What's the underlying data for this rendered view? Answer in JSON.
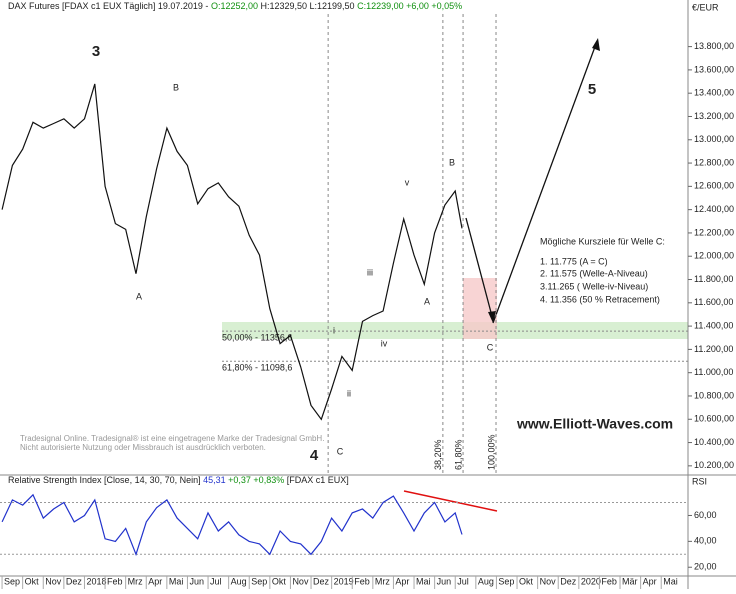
{
  "chart_data": [
    {
      "type": "line",
      "title_parts": [
        {
          "text": "DAX Futures [FDAX c1 EUX  Täglich] 19.07.2019 - ",
          "color": "#222222"
        },
        {
          "text": "O:12252,00",
          "color": "#109010"
        },
        {
          "text": " H:12329,50 L:12199,50 ",
          "color": "#222222"
        },
        {
          "text": "C:12239,00 +6,00 +0,05%",
          "color": "#109010"
        }
      ],
      "y_axis_label": "€/EUR",
      "color": "#111111",
      "x": [
        0,
        0.5,
        1,
        1.5,
        2,
        2.5,
        3,
        3.5,
        4,
        4.5,
        5,
        5.5,
        6,
        6.5,
        7,
        7.5,
        8,
        8.5,
        9,
        9.5,
        10,
        10.5,
        11,
        11.5,
        12,
        12.5,
        13,
        13.5,
        14,
        14.5,
        15,
        15.5,
        16,
        16.5,
        17,
        17.5,
        18,
        18.5,
        19,
        19.5,
        20,
        20.5,
        21,
        21.5,
        22,
        22.33
      ],
      "values": [
        12400,
        12780,
        12920,
        13150,
        13100,
        13140,
        13180,
        13100,
        13180,
        13480,
        12600,
        12280,
        12230,
        11850,
        12340,
        12750,
        13100,
        12900,
        12780,
        12450,
        12580,
        12630,
        12510,
        12430,
        12180,
        12010,
        11550,
        11250,
        11320,
        11050,
        10720,
        10600,
        10860,
        11140,
        11020,
        11440,
        11490,
        11530,
        11940,
        12320,
        12010,
        11760,
        12200,
        12440,
        12560,
        12239
      ],
      "xlim": [
        -0.1,
        33.3
      ],
      "ylim": [
        10130,
        14080
      ],
      "yticks": [
        {
          "value": 10200,
          "label": "10.200,00"
        },
        {
          "value": 10400,
          "label": "10.400,00"
        },
        {
          "value": 10600,
          "label": "10.600,00"
        },
        {
          "value": 10800,
          "label": "10.800,00"
        },
        {
          "value": 11000,
          "label": "11.000,00"
        },
        {
          "value": 11200,
          "label": "11.200,00"
        },
        {
          "value": 11400,
          "label": "11.400,00"
        },
        {
          "value": 11600,
          "label": "11.600,00"
        },
        {
          "value": 11800,
          "label": "11.800,00"
        },
        {
          "value": 12000,
          "label": "12.000,00"
        },
        {
          "value": 12200,
          "label": "12.200,00"
        },
        {
          "value": 12400,
          "label": "12.400,00"
        },
        {
          "value": 12600,
          "label": "12.600,00"
        },
        {
          "value": 12800,
          "label": "12.800,00"
        },
        {
          "value": 13000,
          "label": "13.000,00"
        },
        {
          "value": 13200,
          "label": "13.200,00"
        },
        {
          "value": 13400,
          "label": "13.400,00"
        },
        {
          "value": 13600,
          "label": "13.600,00"
        },
        {
          "value": 13800,
          "label": "13.800,00"
        }
      ],
      "fib_levels": [
        {
          "label": "50,00% - 11356,6",
          "value": 11356.6
        },
        {
          "label": "61,80% - 11098,6",
          "value": 11098.6
        }
      ],
      "time_lines": [
        {
          "x": 15.83
        },
        {
          "label": "38,20%",
          "x": 21.4
        },
        {
          "label": "61,80%",
          "x": 22.38
        },
        {
          "label": "100,00%",
          "x": 23.98
        }
      ],
      "wave_labels": [
        "3",
        "B",
        "A",
        "4",
        "C",
        "i",
        "ii",
        "iii",
        "iv",
        "v",
        "B",
        "A",
        "C",
        "5"
      ],
      "targets_title": "Mögliche Kursziele für Welle C:",
      "targets": [
        "1.  11.775 (A = C)",
        "2.  11.575 (Welle-A-Niveau)",
        "3.11.265 ( Welle-iv-Niveau)",
        "4.  11.356 (50 % Retracement)"
      ],
      "website": "www.Elliott-Waves.com",
      "notice": [
        "Tradesignal Online. Tradesignal® ist eine eingetragene Marke der Tradesignal GmbH.",
        "Nicht autorisierte Nutzung oder Missbrauch ist ausdrücklich verboten."
      ]
    },
    {
      "type": "line",
      "title_parts": [
        {
          "text": "Relative Strength Index [Close, 14, 30, 70, Nein] ",
          "color": "#222222"
        },
        {
          "text": "45,31",
          "color": "#2233cc"
        },
        {
          "text": " +0,37 +0,83%",
          "color": "#109010"
        },
        {
          "text": " [FDAX c1 EUX]",
          "color": "#222222"
        }
      ],
      "y_axis_label": "RSI",
      "color": "#2233cc",
      "x": [
        0,
        0.5,
        1,
        1.5,
        2,
        2.5,
        3,
        3.5,
        4,
        4.5,
        5,
        5.5,
        6,
        6.5,
        7,
        7.5,
        8,
        8.5,
        9,
        9.5,
        10,
        10.5,
        11,
        11.5,
        12,
        12.5,
        13,
        13.5,
        14,
        14.5,
        15,
        15.5,
        16,
        16.5,
        17,
        17.5,
        18,
        18.5,
        19,
        19.5,
        20,
        20.5,
        21,
        21.5,
        22,
        22.33
      ],
      "values": [
        55,
        72,
        68,
        76,
        58,
        65,
        70,
        55,
        60,
        72,
        42,
        40,
        50,
        30,
        55,
        66,
        72,
        58,
        50,
        42,
        62,
        48,
        55,
        45,
        40,
        38,
        30,
        48,
        40,
        38,
        30,
        40,
        58,
        48,
        62,
        65,
        58,
        70,
        75,
        62,
        48,
        62,
        70,
        55,
        62,
        45.31
      ],
      "xlim": [
        -0.1,
        33.3
      ],
      "ylim": [
        14,
        82
      ],
      "yticks": [
        {
          "value": 20,
          "label": "20,00"
        },
        {
          "value": 40,
          "label": "40,00"
        },
        {
          "value": 60,
          "label": "60,00"
        }
      ],
      "reference_lines": [
        70,
        30
      ],
      "xticks": [
        {
          "value": 0,
          "label": "Sep"
        },
        {
          "value": 1,
          "label": "Okt"
        },
        {
          "value": 2,
          "label": "Nov"
        },
        {
          "value": 3,
          "label": "Dez"
        },
        {
          "value": 4,
          "label": "2018"
        },
        {
          "value": 5,
          "label": "Feb"
        },
        {
          "value": 6,
          "label": "Mrz"
        },
        {
          "value": 7,
          "label": "Apr"
        },
        {
          "value": 8,
          "label": "Mai"
        },
        {
          "value": 9,
          "label": "Jun"
        },
        {
          "value": 10,
          "label": "Jul"
        },
        {
          "value": 11,
          "label": "Aug"
        },
        {
          "value": 12,
          "label": "Sep"
        },
        {
          "value": 13,
          "label": "Okt"
        },
        {
          "value": 14,
          "label": "Nov"
        },
        {
          "value": 15,
          "label": "Dez"
        },
        {
          "value": 16,
          "label": "2019"
        },
        {
          "value": 17,
          "label": "Feb"
        },
        {
          "value": 18,
          "label": "Mrz"
        },
        {
          "value": 19,
          "label": "Apr"
        },
        {
          "value": 20,
          "label": "Mai"
        },
        {
          "value": 21,
          "label": "Jun"
        },
        {
          "value": 22,
          "label": "Jul"
        },
        {
          "value": 23,
          "label": "Aug"
        },
        {
          "value": 24,
          "label": "Sep"
        },
        {
          "value": 25,
          "label": "Okt"
        },
        {
          "value": 26,
          "label": "Nov"
        },
        {
          "value": 27,
          "label": "Dez"
        },
        {
          "value": 28,
          "label": "2020"
        },
        {
          "value": 29,
          "label": "Feb"
        },
        {
          "value": 30,
          "label": "Mär"
        },
        {
          "value": 31,
          "label": "Apr"
        },
        {
          "value": 32,
          "label": "Mai"
        }
      ]
    }
  ]
}
